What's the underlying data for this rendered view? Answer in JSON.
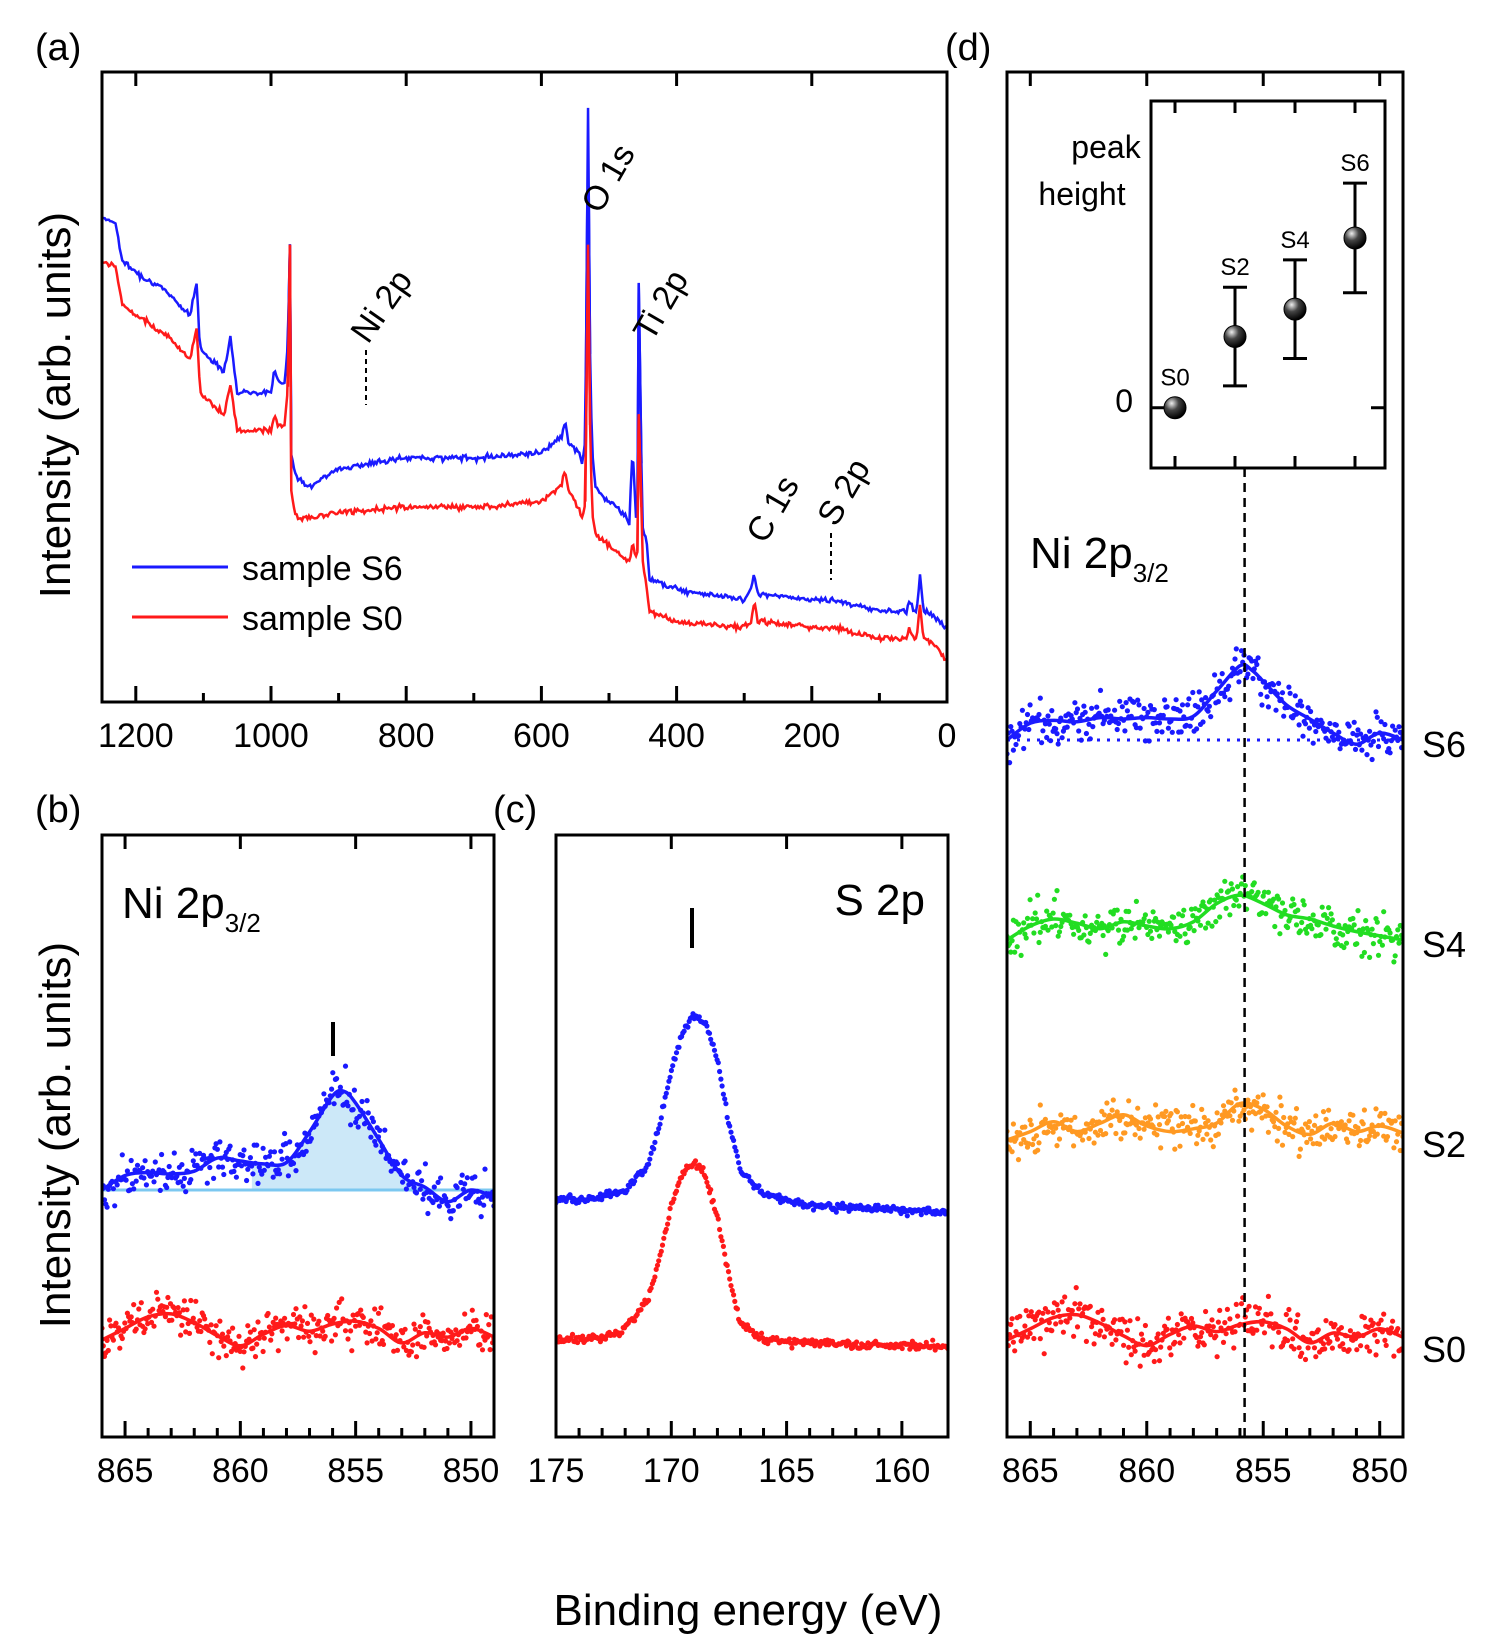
{
  "figure": {
    "shared_xlabel": "Binding energy (eV)",
    "shared_ylabel": "Intensity (arb. units)",
    "colors": {
      "blue": "#1a1aff",
      "red": "#ff1a1a",
      "green": "#22dd22",
      "orange": "#ff9922",
      "fill": "#cce8f8",
      "baseline": "#7cc8f0",
      "black": "#000000"
    }
  },
  "chart_data": [
    {
      "panel": "(a)",
      "type": "line",
      "xlabel": "Binding energy (eV)",
      "ylabel": "Intensity (arb. units)",
      "xlim": [
        1250,
        0
      ],
      "xticks": [
        1200,
        1000,
        800,
        600,
        400,
        200,
        0
      ],
      "legend": [
        "sample S6",
        "sample S0"
      ],
      "legend_loc": "lower-left",
      "annotations": [
        "Ni 2p",
        "O 1s",
        "Ti 2p",
        "C 1s",
        "S 2p"
      ],
      "series": [
        {
          "name": "sample S6",
          "x": [
            1250,
            1230,
            1220,
            1200,
            1150,
            1120,
            1110,
            1105,
            1080,
            1070,
            1060,
            1050,
            1000,
            995,
            990,
            980,
            975,
            972,
            970,
            965,
            960,
            955,
            950,
            940,
            900,
            800,
            700,
            600,
            570,
            565,
            560,
            555,
            545,
            540,
            535,
            531,
            528,
            525,
            520,
            510,
            500,
            480,
            470,
            465,
            460,
            458,
            456,
            452,
            450,
            445,
            440,
            420,
            400,
            300,
            290,
            285,
            280,
            270,
            200,
            170,
            100,
            60,
            55,
            50,
            45,
            40,
            35,
            20,
            0
          ],
          "y": [
            100.0,
            99.0,
            92.0,
            90.0,
            86.0,
            82.0,
            88.0,
            76.0,
            73.0,
            72.0,
            78.0,
            68.0,
            68.0,
            72.0,
            70.0,
            70.0,
            77.0,
            95.0,
            57.0,
            53.0,
            52.0,
            52.0,
            51.0,
            51.0,
            54.0,
            56.0,
            56.0,
            57.0,
            60.0,
            63.0,
            59.0,
            58.0,
            57.0,
            55.0,
            59.0,
            120.0,
            75.0,
            57.0,
            51.0,
            49.0,
            48.0,
            46.0,
            44.0,
            58.0,
            45.0,
            46.0,
            88.0,
            55.0,
            43.0,
            41.0,
            34.0,
            33.0,
            32.0,
            30.0,
            32.0,
            35.0,
            31.0,
            31.0,
            30.0,
            30.0,
            28.0,
            28.0,
            30.0,
            28.0,
            28.0,
            35.0,
            28.0,
            27.0,
            25.0
          ]
        },
        {
          "name": "sample S0",
          "x": [
            1250,
            1230,
            1220,
            1200,
            1150,
            1120,
            1110,
            1105,
            1080,
            1070,
            1060,
            1050,
            1000,
            995,
            990,
            980,
            975,
            972,
            970,
            965,
            960,
            955,
            950,
            940,
            900,
            800,
            700,
            600,
            570,
            565,
            560,
            555,
            545,
            540,
            535,
            531,
            528,
            525,
            520,
            510,
            500,
            480,
            470,
            465,
            460,
            458,
            456,
            452,
            450,
            445,
            440,
            420,
            400,
            300,
            290,
            285,
            280,
            270,
            200,
            170,
            100,
            60,
            55,
            50,
            45,
            40,
            35,
            20,
            0
          ],
          "y": [
            92.0,
            91.0,
            84.0,
            82.0,
            78.0,
            74.0,
            80.0,
            68.0,
            65.0,
            64.0,
            69.0,
            61.0,
            61.0,
            64.0,
            62.0,
            62.0,
            69.0,
            95.0,
            50.0,
            46.0,
            45.0,
            45.0,
            45.0,
            45.0,
            46.0,
            47.0,
            47.0,
            48.0,
            51.0,
            54.0,
            50.0,
            49.0,
            47.0,
            45.0,
            48.0,
            95.0,
            62.0,
            46.0,
            42.0,
            41.0,
            40.0,
            38.0,
            37.0,
            40.0,
            38.0,
            39.0,
            64.0,
            47.0,
            37.0,
            33.0,
            28.0,
            27.0,
            26.0,
            25.0,
            26.0,
            30.0,
            26.0,
            26.0,
            25.0,
            25.0,
            23.0,
            23.0,
            25.0,
            23.0,
            23.0,
            29.0,
            23.0,
            22.0,
            19.0
          ]
        }
      ]
    },
    {
      "panel": "(b)",
      "type": "scatter",
      "label": "Ni 2p",
      "label_sub": "3/2",
      "xlim": [
        866,
        849
      ],
      "xticks": [
        865,
        860,
        855,
        850
      ],
      "marker_at": 855.6,
      "series": [
        {
          "name": "S6",
          "color": "blue",
          "x": [
            866.0,
            865.0,
            864.0,
            863.0,
            862.0,
            861.0,
            860.0,
            859.0,
            858.0,
            857.0,
            856.0,
            855.5,
            855.0,
            854.0,
            853.0,
            852.0,
            851.0,
            850.0,
            849.0
          ],
          "y": [
            0.0,
            1.0,
            1.2,
            1.1,
            1.3,
            2.2,
            2.0,
            1.8,
            1.9,
            4.0,
            6.5,
            6.8,
            6.0,
            3.5,
            1.0,
            0.2,
            -0.8,
            0.0,
            -0.5
          ]
        },
        {
          "name": "S0",
          "color": "red",
          "x": [
            866.0,
            865.0,
            864.0,
            863.0,
            862.0,
            861.0,
            860.0,
            859.0,
            858.0,
            857.0,
            856.0,
            855.0,
            854.0,
            853.0,
            852.0,
            851.0,
            850.0,
            849.0
          ],
          "y": [
            0.0,
            0.8,
            1.6,
            1.8,
            1.2,
            0.3,
            -0.4,
            0.4,
            1.0,
            0.6,
            1.1,
            1.3,
            0.8,
            -0.2,
            0.5,
            0.2,
            0.8,
            0.2
          ]
        }
      ]
    },
    {
      "panel": "(c)",
      "type": "scatter",
      "label": "S 2p",
      "xlim": [
        175,
        158
      ],
      "xticks": [
        175,
        170,
        165,
        160
      ],
      "marker_at": 169.0,
      "series": [
        {
          "name": "S6",
          "color": "blue",
          "x": [
            175.0,
            173.0,
            172.0,
            171.0,
            170.5,
            170.0,
            169.5,
            169.0,
            168.5,
            168.0,
            167.5,
            167.0,
            166.0,
            164.0,
            160.0,
            158.0
          ],
          "y": [
            0.0,
            0.2,
            0.8,
            3.0,
            6.5,
            11.0,
            14.5,
            15.8,
            15.0,
            12.0,
            6.5,
            2.5,
            0.5,
            -0.5,
            -0.8,
            -1.0
          ]
        },
        {
          "name": "S0",
          "color": "red",
          "x": [
            175.0,
            173.0,
            172.0,
            171.0,
            170.5,
            170.0,
            169.5,
            169.0,
            168.5,
            168.0,
            167.5,
            167.0,
            166.0,
            164.0,
            160.0,
            158.0
          ],
          "y": [
            0.0,
            0.2,
            1.0,
            3.5,
            7.0,
            11.5,
            14.3,
            15.3,
            14.0,
            10.5,
            5.5,
            1.5,
            0.0,
            -0.2,
            -0.5,
            -0.6
          ]
        }
      ]
    },
    {
      "panel": "(d)",
      "type": "scatter",
      "label": "Ni 2p",
      "label_sub": "3/2",
      "xlim": [
        866,
        849
      ],
      "xticks": [
        865,
        860,
        855,
        850
      ],
      "vline_at": 855.8,
      "series": [
        {
          "name": "S6",
          "color": "blue",
          "x": [
            866.0,
            865.0,
            864.0,
            863.0,
            862.0,
            861.0,
            860.0,
            859.0,
            858.0,
            857.0,
            856.0,
            855.5,
            855.0,
            854.0,
            853.0,
            852.0,
            851.0,
            850.0,
            849.0
          ],
          "y": [
            0.0,
            1.2,
            1.4,
            1.3,
            1.6,
            1.5,
            1.6,
            1.5,
            1.7,
            3.5,
            5.3,
            5.0,
            4.2,
            2.5,
            1.5,
            0.5,
            -0.3,
            0.5,
            0.0
          ]
        },
        {
          "name": "S4",
          "color": "green",
          "x": [
            866.0,
            865.0,
            864.0,
            863.0,
            862.0,
            861.0,
            860.0,
            859.0,
            858.0,
            857.0,
            856.0,
            855.0,
            854.0,
            853.0,
            852.0,
            851.0,
            850.0,
            849.0
          ],
          "y": [
            0.0,
            1.0,
            1.5,
            1.2,
            0.8,
            1.3,
            1.0,
            0.8,
            1.3,
            2.6,
            3.2,
            2.6,
            1.8,
            1.5,
            1.0,
            0.6,
            0.3,
            0.0
          ]
        },
        {
          "name": "S2",
          "color": "orange",
          "x": [
            866.0,
            865.0,
            864.0,
            863.0,
            862.0,
            861.0,
            860.0,
            859.0,
            858.0,
            857.0,
            856.0,
            855.0,
            854.0,
            853.0,
            852.0,
            851.0,
            850.0,
            849.0
          ],
          "y": [
            0.0,
            0.6,
            1.3,
            0.6,
            1.2,
            1.8,
            1.0,
            0.6,
            0.8,
            1.2,
            2.6,
            2.2,
            1.0,
            0.4,
            1.2,
            0.6,
            1.0,
            0.5
          ]
        },
        {
          "name": "S0",
          "color": "red",
          "x": [
            866.0,
            865.0,
            864.0,
            863.0,
            862.0,
            861.0,
            860.0,
            859.0,
            858.0,
            857.0,
            856.0,
            855.0,
            854.0,
            853.0,
            852.0,
            851.0,
            850.0,
            849.0
          ],
          "y": [
            0.0,
            0.8,
            1.6,
            1.8,
            1.2,
            0.3,
            -0.4,
            0.4,
            1.0,
            0.6,
            1.1,
            1.3,
            0.8,
            -0.2,
            0.5,
            0.2,
            0.8,
            0.2
          ]
        }
      ],
      "row_labels": [
        "S6",
        "S4",
        "S2",
        "S0"
      ]
    },
    {
      "panel": "(d) inset",
      "type": "scatter",
      "ylabel": "peak height",
      "yticks": [
        0
      ],
      "ylim": [
        -1.1,
        5.6
      ],
      "categories": [
        "S0",
        "S2",
        "S4",
        "S6"
      ],
      "values": [
        0.0,
        1.3,
        1.8,
        3.1
      ],
      "errors": [
        0.0,
        0.9,
        0.9,
        1.0
      ]
    }
  ]
}
